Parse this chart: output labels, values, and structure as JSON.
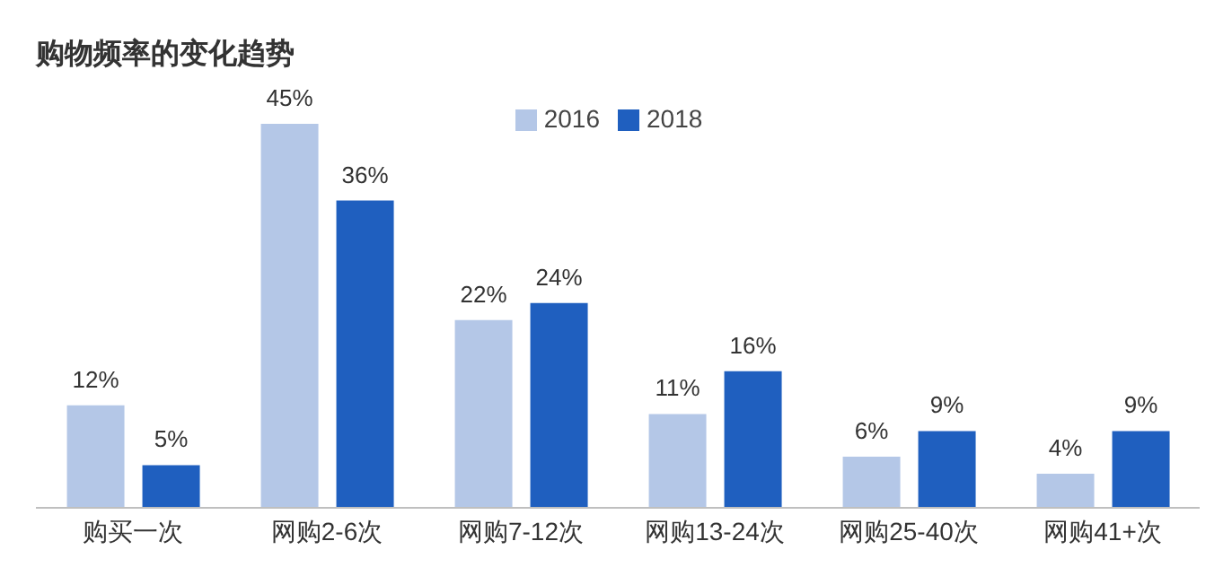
{
  "chart_data": {
    "type": "bar",
    "title": "购物频率的变化趋势",
    "categories": [
      "购买一次",
      "网购2-6次",
      "网购7-12次",
      "网购13-24次",
      "网购25-40次",
      "网购41+次"
    ],
    "series": [
      {
        "name": "2016",
        "color": "#b4c7e7",
        "values": [
          12,
          45,
          22,
          11,
          6,
          4
        ],
        "value_labels": [
          "12%",
          "45%",
          "22%",
          "11%",
          "6%",
          "4%"
        ]
      },
      {
        "name": "2018",
        "color": "#1f5fbf",
        "values": [
          5,
          36,
          24,
          16,
          9,
          9
        ],
        "value_labels": [
          "5%",
          "36%",
          "24%",
          "16%",
          "9%",
          "9%"
        ]
      }
    ],
    "legend": "top"
  }
}
